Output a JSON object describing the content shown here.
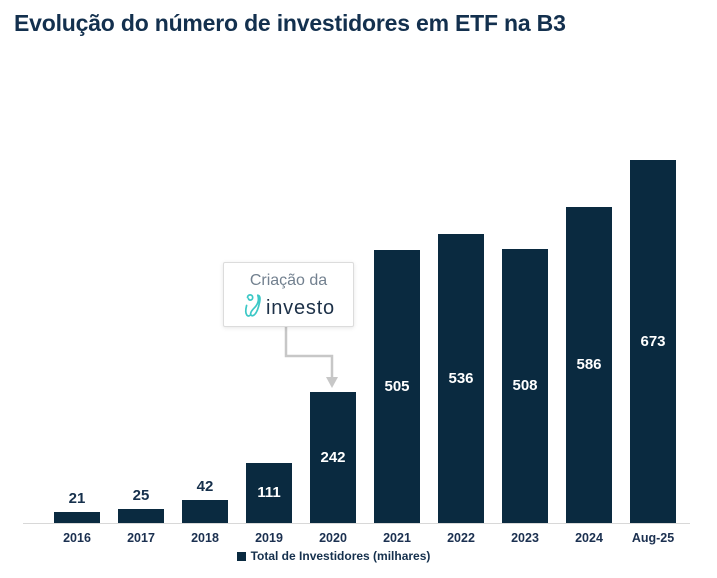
{
  "chart_data": {
    "type": "bar",
    "title": "Evolução do número de investidores em ETF na B3",
    "categories": [
      "2016",
      "2017",
      "2018",
      "2019",
      "2020",
      "2021",
      "2022",
      "2023",
      "2024",
      "Aug-25"
    ],
    "values": [
      21,
      25,
      42,
      111,
      242,
      505,
      536,
      508,
      586,
      673
    ],
    "ylim": [
      0,
      700
    ],
    "grid": "off",
    "legend_position": "bottom-center",
    "legend_label": "Total de Investidores (milhares)",
    "bar_color": "#0a2a40",
    "label_inside_color": "#ffffff",
    "label_outside_color": "#16304c",
    "annotation": {
      "text": "Criação da",
      "logo_text": "investo",
      "logo_color": "#3cc8c6",
      "target_category": "2020"
    }
  }
}
